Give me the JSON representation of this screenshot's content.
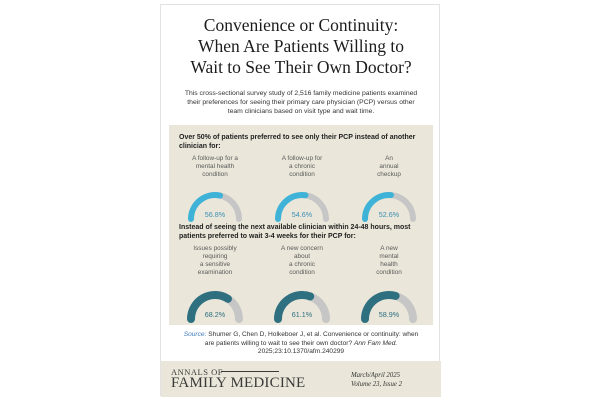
{
  "title_lines": [
    "Convenience or Continuity:",
    "When Are Patients Willing to",
    "Wait to See Their Own Doctor?"
  ],
  "intro_lines": [
    "This cross-sectional survey study of 2,516 family medicine patients examined",
    "their preferences for seeing their primary care physician (PCP) versus other",
    "team clinicians based on visit type and wait time."
  ],
  "chart_data": [
    {
      "type": "gauge",
      "title_lines": [
        "Over 50% of patients preferred to see only their PCP instead of another",
        "clinician for:"
      ],
      "categories": [
        [
          "A follow-up for a",
          "mental health",
          "condition"
        ],
        [
          "A follow-up for",
          "a chronic",
          "condition"
        ],
        [
          "An",
          "annual",
          "checkup"
        ]
      ],
      "values": [
        56.8,
        54.6,
        52.6
      ],
      "value_labels": [
        "56.8%",
        "54.6%",
        "52.6%"
      ],
      "max": 100,
      "color": "#3fb2d7",
      "track_color": "#c6c6c6",
      "label_color": "#3a8fb5"
    },
    {
      "type": "gauge",
      "title_lines": [
        "Instead of seeing the next available clinician within 24-48 hours, most",
        "patients preferred to wait 3-4 weeks for their PCP for:"
      ],
      "categories": [
        [
          "Issues possibly",
          "requiring",
          "a sensitive",
          "examination"
        ],
        [
          "A new concern",
          "about",
          "a chronic",
          "condition"
        ],
        [
          "A new",
          "mental",
          "health",
          "condition"
        ]
      ],
      "values": [
        68.2,
        61.1,
        58.9
      ],
      "value_labels": [
        "68.2%",
        "61.1%",
        "58.9%"
      ],
      "max": 100,
      "color": "#2e6f80",
      "track_color": "#c6c6c6",
      "label_color": "#2e6f80"
    }
  ],
  "source": {
    "label": "Source:",
    "line1": "Shumer G, Chen D, Holkeboer J, et al. Convenience or continuity: when",
    "line2_plain": "are patients willing to wait to see their own doctor?",
    "line2_journal": "Ann Fam Med.",
    "line3": "2025;23:10.1370/afm.240299"
  },
  "footer": {
    "logo_top": "ANNALS OF",
    "logo_bottom": "FAMILY MEDICINE",
    "issue_lines": [
      "March/April 2025",
      "Volume 23, Issue 2"
    ]
  }
}
